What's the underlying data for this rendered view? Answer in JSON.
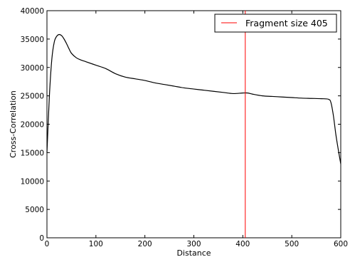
{
  "chart_data": {
    "type": "line",
    "title": "",
    "xlabel": "Distance",
    "ylabel": "Cross-Correlation",
    "xlim": [
      0,
      600
    ],
    "ylim": [
      0,
      40000
    ],
    "xticks": [
      0,
      100,
      200,
      300,
      400,
      500,
      600
    ],
    "yticks": [
      0,
      5000,
      10000,
      15000,
      20000,
      25000,
      30000,
      35000,
      40000
    ],
    "grid": false,
    "legend_position": "top-right",
    "series": [
      {
        "color": "#000000",
        "x": [
          0,
          5,
          10,
          15,
          20,
          25,
          30,
          35,
          40,
          45,
          50,
          60,
          70,
          80,
          100,
          120,
          140,
          160,
          180,
          200,
          220,
          240,
          260,
          280,
          300,
          320,
          340,
          360,
          380,
          400,
          410,
          420,
          440,
          460,
          480,
          500,
          520,
          540,
          560,
          575,
          580,
          585,
          590,
          595,
          600
        ],
        "y": [
          15000,
          25000,
          31500,
          34500,
          35500,
          35800,
          35600,
          35000,
          34200,
          33300,
          32500,
          31700,
          31300,
          31000,
          30400,
          29800,
          28900,
          28300,
          28000,
          27700,
          27300,
          27000,
          26700,
          26400,
          26200,
          26000,
          25800,
          25600,
          25400,
          25500,
          25500,
          25300,
          25000,
          24900,
          24800,
          24700,
          24600,
          24550,
          24500,
          24400,
          23800,
          21500,
          18200,
          15500,
          13000
        ]
      },
      {
        "name": "Fragment size 405",
        "color": "#ff0000",
        "type": "vline",
        "x": 405
      }
    ]
  }
}
